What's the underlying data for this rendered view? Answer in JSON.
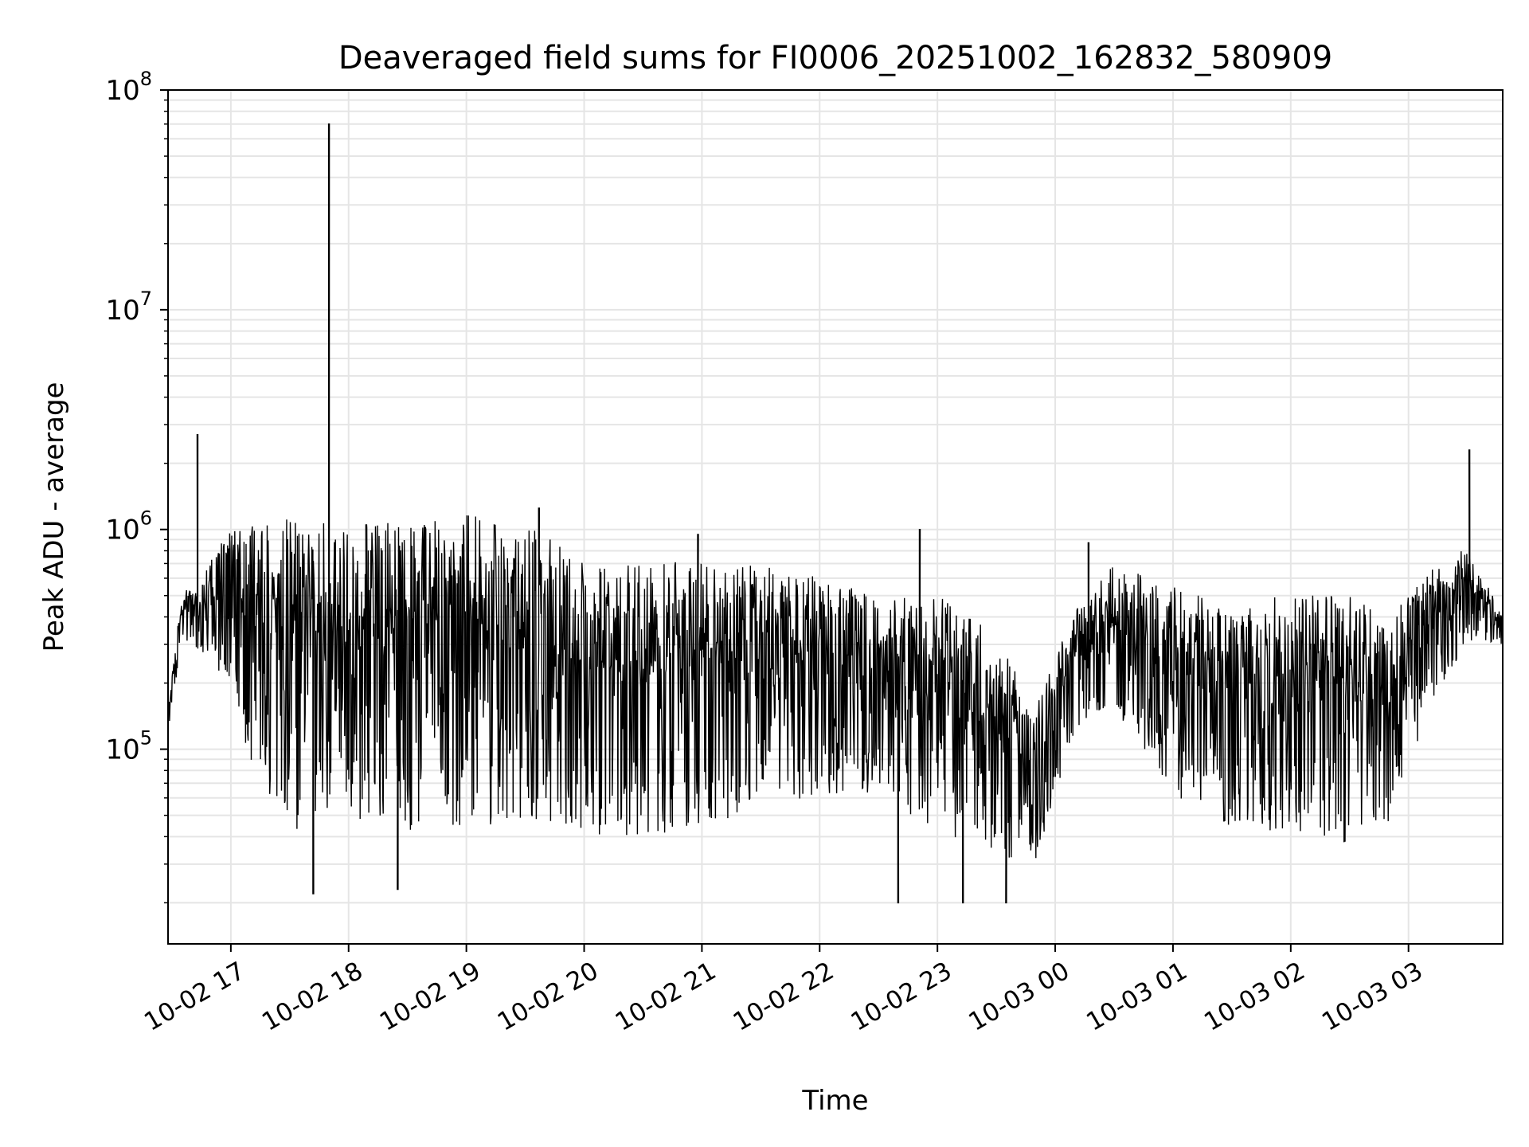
{
  "chart_data": {
    "type": "line",
    "title": "Deaveraged field sums for FI0006_20251002_162832_580909",
    "xlabel": "Time",
    "ylabel": "Peak ADU - average",
    "yscale": "log",
    "xlim": [
      "2025-10-02 16:28",
      "2025-10-03 03:48"
    ],
    "ylim": [
      13000,
      100000000
    ],
    "grid": true,
    "line_color": "#000000",
    "grid_color": "#e5e5e5",
    "x_ticks": [
      {
        "t": "2025-10-02 17:00",
        "label": "10-02 17"
      },
      {
        "t": "2025-10-02 18:00",
        "label": "10-02 18"
      },
      {
        "t": "2025-10-02 19:00",
        "label": "10-02 19"
      },
      {
        "t": "2025-10-02 20:00",
        "label": "10-02 20"
      },
      {
        "t": "2025-10-02 21:00",
        "label": "10-02 21"
      },
      {
        "t": "2025-10-02 22:00",
        "label": "10-02 22"
      },
      {
        "t": "2025-10-02 23:00",
        "label": "10-02 23"
      },
      {
        "t": "2025-10-03 00:00",
        "label": "10-03 00"
      },
      {
        "t": "2025-10-03 01:00",
        "label": "10-03 01"
      },
      {
        "t": "2025-10-03 02:00",
        "label": "10-03 02"
      },
      {
        "t": "2025-10-03 03:00",
        "label": "10-03 03"
      }
    ],
    "y_ticks": [
      {
        "value": 100000,
        "base": "10",
        "exp": "5"
      },
      {
        "value": 1000000,
        "base": "10",
        "exp": "6"
      },
      {
        "value": 10000000,
        "base": "10",
        "exp": "7"
      },
      {
        "value": 100000000,
        "base": "10",
        "exp": "8"
      }
    ],
    "envelope": {
      "t": [
        "2025-10-02 16:28",
        "2025-10-02 16:35",
        "2025-10-02 16:45",
        "2025-10-02 17:00",
        "2025-10-02 17:10",
        "2025-10-02 17:30",
        "2025-10-02 18:00",
        "2025-10-02 18:30",
        "2025-10-02 19:00",
        "2025-10-02 19:30",
        "2025-10-02 20:00",
        "2025-10-02 20:30",
        "2025-10-02 21:00",
        "2025-10-02 21:30",
        "2025-10-02 22:00",
        "2025-10-02 22:30",
        "2025-10-02 23:00",
        "2025-10-02 23:30",
        "2025-10-02 23:50",
        "2025-10-03 00:10",
        "2025-10-03 00:30",
        "2025-10-03 01:00",
        "2025-10-03 01:30",
        "2025-10-03 02:00",
        "2025-10-03 02:30",
        "2025-10-03 02:50",
        "2025-10-03 03:10",
        "2025-10-03 03:30",
        "2025-10-03 03:48"
      ],
      "high": [
        150000,
        500000,
        600000,
        950000,
        1000000,
        950000,
        900000,
        950000,
        1000000,
        900000,
        650000,
        600000,
        650000,
        600000,
        550000,
        450000,
        450000,
        300000,
        150000,
        400000,
        650000,
        500000,
        400000,
        450000,
        450000,
        350000,
        600000,
        800000,
        400000
      ],
      "low": [
        120000,
        300000,
        250000,
        200000,
        80000,
        40000,
        45000,
        40000,
        40000,
        45000,
        40000,
        35000,
        40000,
        50000,
        60000,
        60000,
        40000,
        30000,
        30000,
        120000,
        150000,
        60000,
        40000,
        40000,
        35000,
        40000,
        150000,
        300000,
        300000
      ]
    },
    "spikes": [
      {
        "t": "2025-10-02 16:43",
        "value": 2700000
      },
      {
        "t": "2025-10-02 17:50",
        "value": 70000000
      },
      {
        "t": "2025-10-02 18:09",
        "value": 1050000
      },
      {
        "t": "2025-10-02 19:37",
        "value": 1250000
      },
      {
        "t": "2025-10-02 20:58",
        "value": 950000
      },
      {
        "t": "2025-10-02 22:51",
        "value": 1000000
      },
      {
        "t": "2025-10-03 00:17",
        "value": 870000
      },
      {
        "t": "2025-10-03 03:31",
        "value": 2300000
      }
    ],
    "dips": [
      {
        "t": "2025-10-02 17:42",
        "value": 22000
      },
      {
        "t": "2025-10-02 18:25",
        "value": 23000
      },
      {
        "t": "2025-10-02 22:40",
        "value": 20000
      },
      {
        "t": "2025-10-02 23:13",
        "value": 20000
      },
      {
        "t": "2025-10-02 23:35",
        "value": 20000
      }
    ]
  }
}
